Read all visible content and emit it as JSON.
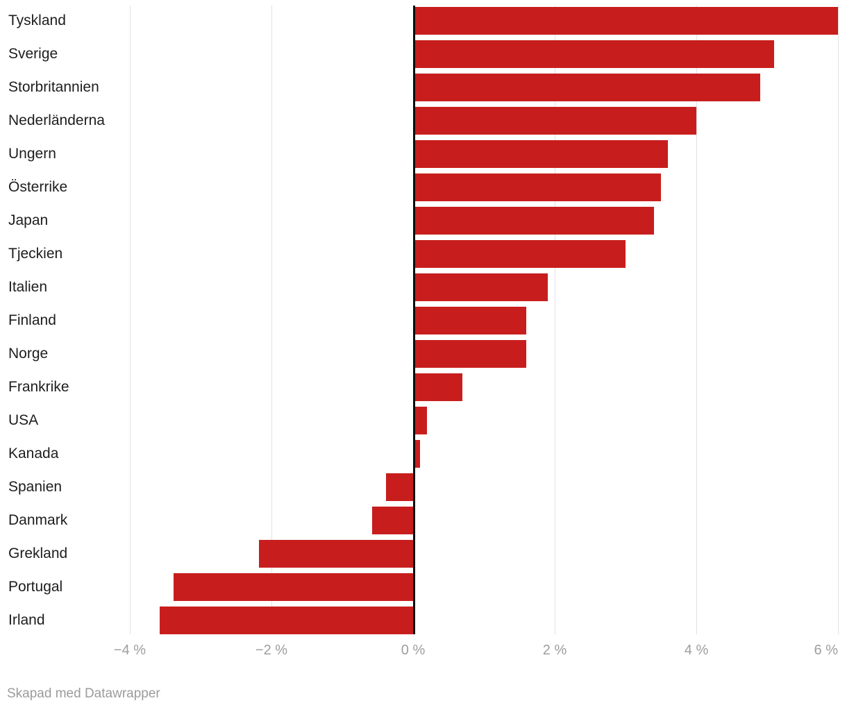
{
  "chart_data": {
    "type": "bar",
    "orientation": "horizontal",
    "unit": "%",
    "categories": [
      "Tyskland",
      "Sverige",
      "Storbritannien",
      "Nederländerna",
      "Ungern",
      "Österrike",
      "Japan",
      "Tjeckien",
      "Italien",
      "Finland",
      "Norge",
      "Frankrike",
      "USA",
      "Kanada",
      "Spanien",
      "Danmark",
      "Grekland",
      "Portugal",
      "Irland"
    ],
    "values": [
      6.0,
      5.1,
      4.9,
      4.0,
      3.6,
      3.5,
      3.4,
      3.0,
      1.9,
      1.6,
      1.6,
      0.7,
      0.2,
      0.1,
      -0.4,
      -0.6,
      -2.2,
      -3.4,
      -3.6
    ],
    "x_ticks": [
      {
        "value": -4,
        "label": "−4 %"
      },
      {
        "value": -2,
        "label": "−2 %"
      },
      {
        "value": 0,
        "label": "0 %"
      },
      {
        "value": 2,
        "label": "2 %"
      },
      {
        "value": 4,
        "label": "4 %"
      },
      {
        "value": 6,
        "label": "6 %"
      }
    ],
    "xlim": [
      -4.2,
      6.05
    ],
    "grid": true,
    "legend": "none",
    "bar_color": "#c71e1d",
    "zero_axis_color": "#0d0d0d",
    "gridline_color": "#e2e2e2"
  },
  "footer": {
    "credit": "Skapad med Datawrapper"
  }
}
